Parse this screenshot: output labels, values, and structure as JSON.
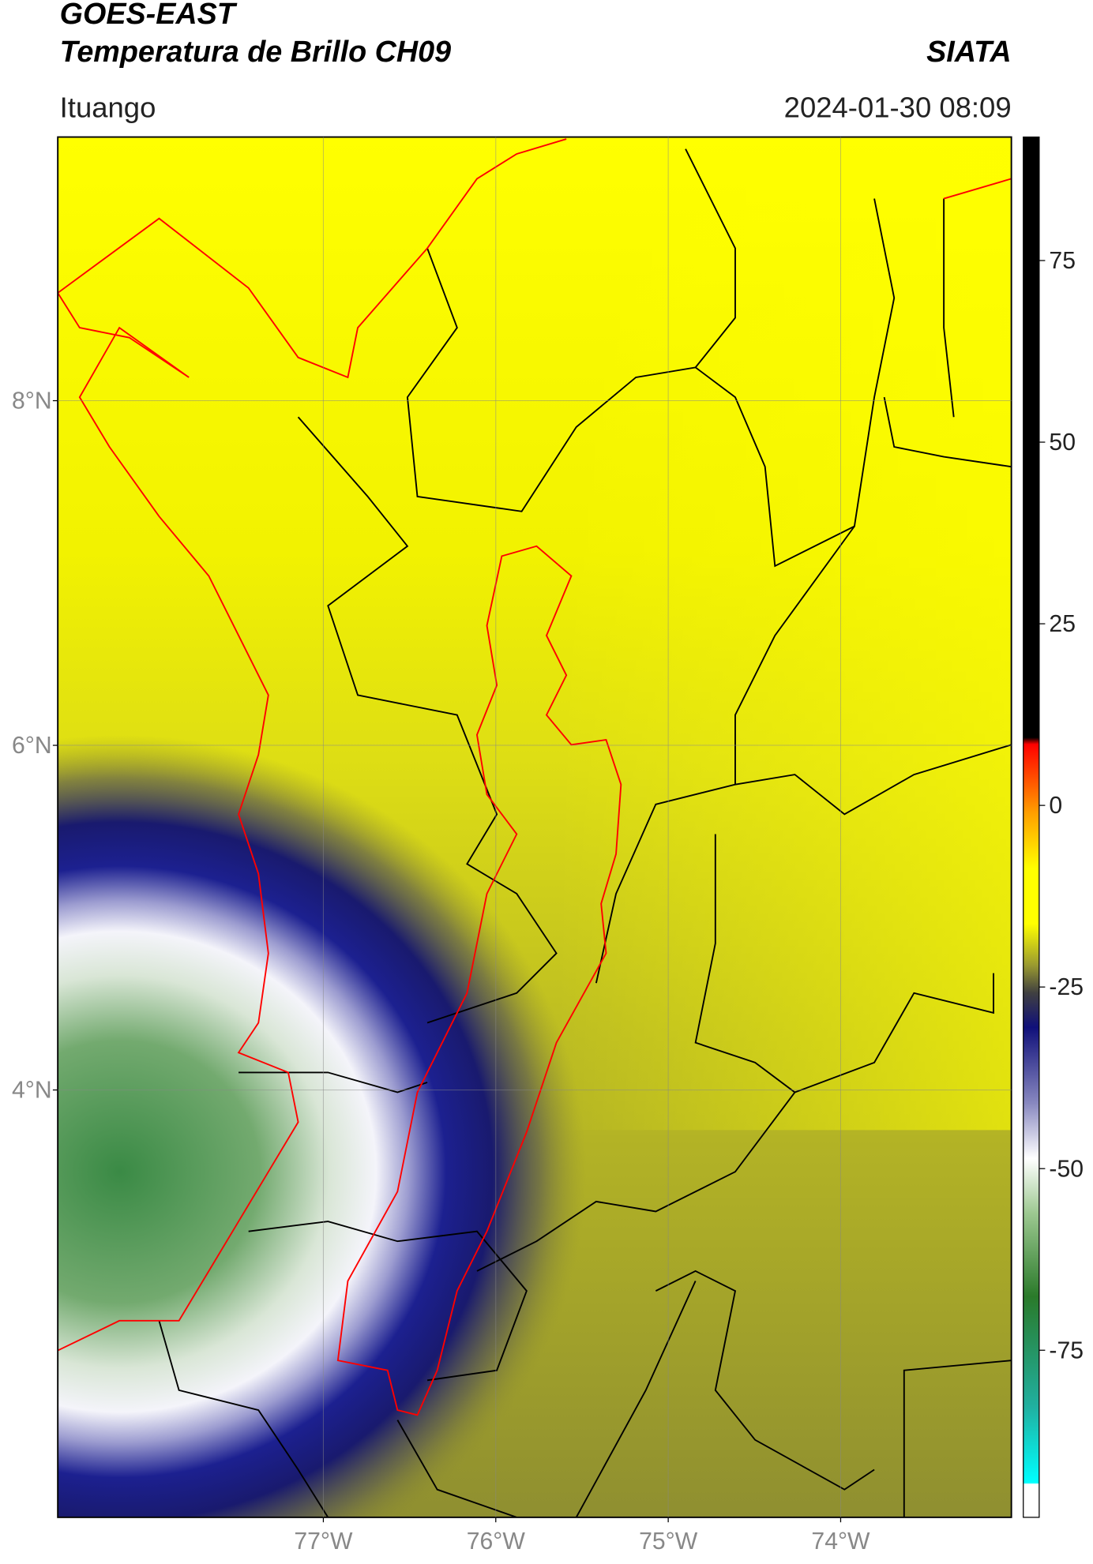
{
  "header": {
    "title_line1": "GOES-EAST",
    "title_line2": "Temperatura de Brillo CH09",
    "org": "SIATA",
    "location": "Ituango",
    "datetime": "2024-01-30 08:09"
  },
  "map": {
    "xlim": [
      -78.54,
      -73.01
    ],
    "ylim": [
      1.52,
      9.53
    ],
    "lat_ticks": [
      {
        "value": 8,
        "label": "8°N"
      },
      {
        "value": 6,
        "label": "6°N"
      },
      {
        "value": 4,
        "label": "4°N"
      }
    ],
    "lon_ticks": [
      {
        "value": -77,
        "label": "77°W"
      },
      {
        "value": -76,
        "label": "76°W"
      },
      {
        "value": -75,
        "label": "75°W"
      },
      {
        "value": -74,
        "label": "74°W"
      }
    ]
  },
  "colorbar": {
    "lim": [
      -98,
      92
    ],
    "ticks": [
      75,
      50,
      25,
      0,
      -25,
      -50,
      -75
    ]
  }
}
